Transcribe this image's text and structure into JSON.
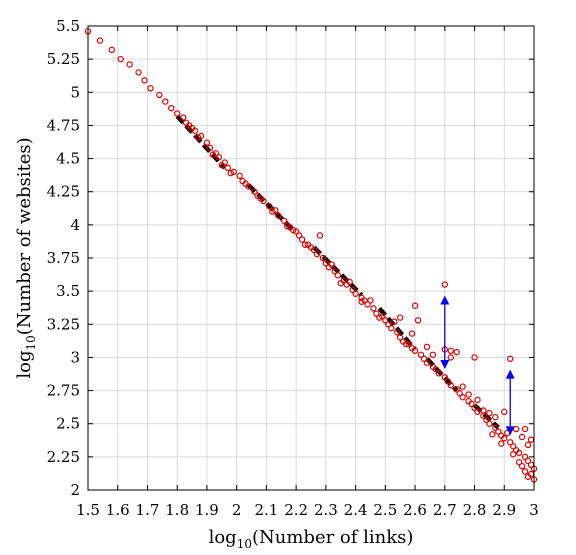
{
  "chart_data": {
    "type": "scatter",
    "xlabel": "log10(Number of links)",
    "ylabel": "log10(Number of websites)",
    "xlabel_parts": {
      "pre": "log",
      "sub": "10",
      "post": "(Number of links)"
    },
    "ylabel_parts": {
      "pre": "log",
      "sub": "10",
      "post": "(Number of websites)"
    },
    "xlim": [
      1.5,
      3.0
    ],
    "ylim": [
      2.0,
      5.5
    ],
    "x_ticks": [
      "1.5",
      "1.6",
      "1.7",
      "1.8",
      "1.9",
      "2",
      "2.1",
      "2.2",
      "2.3",
      "2.4",
      "2.5",
      "2.6",
      "2.7",
      "2.8",
      "2.9",
      "3"
    ],
    "y_ticks": [
      "2",
      "2.25",
      "2.5",
      "2.75",
      "3",
      "3.25",
      "3.5",
      "3.75",
      "4",
      "4.25",
      "4.5",
      "4.75",
      "5",
      "5.25",
      "5.5"
    ],
    "grid": true,
    "colors": {
      "points": "#dd0000",
      "fit": "#000000",
      "arrows": "#0000ee"
    },
    "series": [
      {
        "kind": "scatter",
        "points": [
          [
            1.5,
            5.46
          ],
          [
            1.54,
            5.39
          ],
          [
            1.58,
            5.32
          ],
          [
            1.61,
            5.25
          ],
          [
            1.64,
            5.21
          ],
          [
            1.67,
            5.15
          ],
          [
            1.69,
            5.09
          ],
          [
            1.71,
            5.03
          ],
          [
            1.74,
            4.98
          ],
          [
            1.76,
            4.93
          ],
          [
            1.78,
            4.88
          ],
          [
            1.8,
            4.84
          ],
          [
            1.82,
            4.81
          ],
          [
            1.83,
            4.77
          ],
          [
            1.85,
            4.73
          ],
          [
            1.86,
            4.71
          ],
          [
            1.88,
            4.67
          ],
          [
            1.9,
            4.62
          ],
          [
            1.91,
            4.58
          ],
          [
            1.93,
            4.54
          ],
          [
            1.94,
            4.51
          ],
          [
            1.96,
            4.47
          ],
          [
            1.97,
            4.43
          ],
          [
            1.99,
            4.4
          ],
          [
            2.01,
            4.37
          ],
          [
            2.02,
            4.33
          ],
          [
            2.04,
            4.29
          ],
          [
            2.06,
            4.25
          ],
          [
            2.07,
            4.22
          ],
          [
            2.09,
            4.18
          ],
          [
            2.11,
            4.14
          ],
          [
            2.12,
            4.1
          ],
          [
            2.14,
            4.07
          ],
          [
            2.16,
            4.03
          ],
          [
            2.17,
            3.99
          ],
          [
            2.19,
            3.96
          ],
          [
            2.21,
            3.92
          ],
          [
            2.22,
            3.89
          ],
          [
            2.24,
            3.85
          ],
          [
            2.26,
            3.81
          ],
          [
            2.27,
            3.78
          ],
          [
            2.29,
            3.75
          ],
          [
            2.3,
            3.71
          ],
          [
            2.31,
            3.68
          ],
          [
            2.33,
            3.65
          ],
          [
            2.34,
            3.62
          ],
          [
            2.36,
            3.58
          ],
          [
            2.37,
            3.55
          ],
          [
            2.39,
            3.51
          ],
          [
            2.4,
            3.48
          ],
          [
            2.42,
            3.45
          ],
          [
            2.43,
            3.43
          ],
          [
            2.44,
            3.4
          ],
          [
            2.46,
            3.37
          ],
          [
            2.47,
            3.33
          ],
          [
            2.48,
            3.3
          ],
          [
            2.5,
            3.28
          ],
          [
            2.51,
            3.25
          ],
          [
            2.52,
            3.22
          ],
          [
            2.54,
            3.19
          ],
          [
            2.55,
            3.15
          ],
          [
            2.56,
            3.12
          ],
          [
            2.58,
            3.1
          ],
          [
            2.59,
            3.07
          ],
          [
            2.6,
            3.05
          ],
          [
            2.62,
            3.02
          ],
          [
            2.63,
            2.99
          ],
          [
            2.64,
            2.96
          ],
          [
            2.66,
            2.93
          ],
          [
            2.67,
            2.91
          ],
          [
            2.68,
            2.88
          ],
          [
            2.7,
            2.85
          ],
          [
            2.71,
            2.82
          ],
          [
            2.72,
            2.79
          ],
          [
            2.74,
            2.76
          ],
          [
            2.75,
            2.73
          ],
          [
            2.76,
            2.7
          ],
          [
            2.78,
            2.67
          ],
          [
            2.79,
            2.65
          ],
          [
            2.8,
            2.62
          ],
          [
            2.81,
            2.59
          ],
          [
            2.83,
            2.56
          ],
          [
            2.84,
            2.53
          ],
          [
            2.85,
            2.5
          ],
          [
            2.87,
            2.47
          ],
          [
            2.88,
            2.44
          ],
          [
            2.89,
            2.41
          ],
          [
            2.9,
            2.39
          ],
          [
            2.92,
            2.36
          ],
          [
            2.93,
            2.33
          ],
          [
            2.94,
            2.3
          ],
          [
            2.95,
            2.28
          ],
          [
            2.97,
            2.25
          ],
          [
            2.98,
            2.22
          ],
          [
            2.99,
            2.19
          ],
          [
            3.0,
            2.16
          ],
          [
            2.28,
            3.92
          ],
          [
            2.42,
            3.42
          ],
          [
            2.45,
            3.43
          ],
          [
            2.55,
            3.3
          ],
          [
            2.6,
            3.39
          ],
          [
            2.61,
            3.28
          ],
          [
            2.59,
            3.18
          ],
          [
            2.66,
            3.02
          ],
          [
            2.7,
            3.55
          ],
          [
            2.7,
            3.06
          ],
          [
            2.72,
            3.05
          ],
          [
            2.74,
            3.04
          ],
          [
            2.72,
            3.0
          ],
          [
            2.8,
            3.0
          ],
          [
            2.85,
            2.58
          ],
          [
            2.87,
            2.55
          ],
          [
            2.9,
            2.59
          ],
          [
            2.92,
            2.99
          ],
          [
            2.94,
            2.46
          ],
          [
            2.96,
            2.4
          ],
          [
            2.97,
            2.46
          ],
          [
            2.99,
            2.38
          ],
          [
            2.98,
            2.34
          ],
          [
            3.0,
            2.08
          ],
          [
            2.99,
            2.12
          ],
          [
            2.98,
            2.1
          ],
          [
            2.97,
            2.14
          ],
          [
            2.96,
            2.18
          ],
          [
            2.95,
            2.21
          ],
          [
            2.93,
            2.27
          ],
          [
            2.91,
            2.43
          ],
          [
            2.89,
            2.35
          ],
          [
            2.86,
            2.42
          ],
          [
            2.83,
            2.6
          ],
          [
            2.81,
            2.68
          ],
          [
            2.78,
            2.72
          ],
          [
            2.76,
            2.78
          ],
          [
            2.64,
            3.08
          ],
          [
            2.57,
            3.1
          ],
          [
            2.53,
            3.27
          ],
          [
            2.49,
            3.31
          ],
          [
            2.38,
            3.57
          ],
          [
            2.35,
            3.56
          ],
          [
            2.32,
            3.7
          ],
          [
            2.25,
            3.83
          ],
          [
            2.23,
            3.85
          ],
          [
            2.2,
            3.95
          ],
          [
            2.18,
            3.98
          ],
          [
            2.13,
            4.11
          ],
          [
            2.08,
            4.2
          ],
          [
            2.03,
            4.31
          ],
          [
            1.98,
            4.39
          ],
          [
            1.95,
            4.45
          ],
          [
            1.92,
            4.53
          ],
          [
            1.87,
            4.66
          ],
          [
            1.84,
            4.75
          ]
        ]
      },
      {
        "kind": "fit",
        "segments": [
          [
            [
              1.8,
              4.82
            ],
            [
              1.96,
              4.43
            ]
          ],
          [
            [
              2.04,
              4.3
            ],
            [
              2.19,
              3.96
            ]
          ],
          [
            [
              2.26,
              3.83
            ],
            [
              2.42,
              3.47
            ]
          ],
          [
            [
              2.48,
              3.37
            ],
            [
              2.6,
              3.06
            ]
          ],
          [
            [
              2.64,
              2.99
            ],
            [
              2.74,
              2.75
            ]
          ],
          [
            [
              2.8,
              2.64
            ],
            [
              2.88,
              2.47
            ]
          ]
        ]
      },
      {
        "kind": "arrows",
        "items": [
          {
            "x": 2.7,
            "from": 2.92,
            "to": 3.46,
            "head_up": true,
            "head_down": true
          },
          {
            "x": 2.92,
            "from": 2.42,
            "to": 2.9,
            "head_up": true,
            "head_down": true
          }
        ]
      }
    ]
  }
}
